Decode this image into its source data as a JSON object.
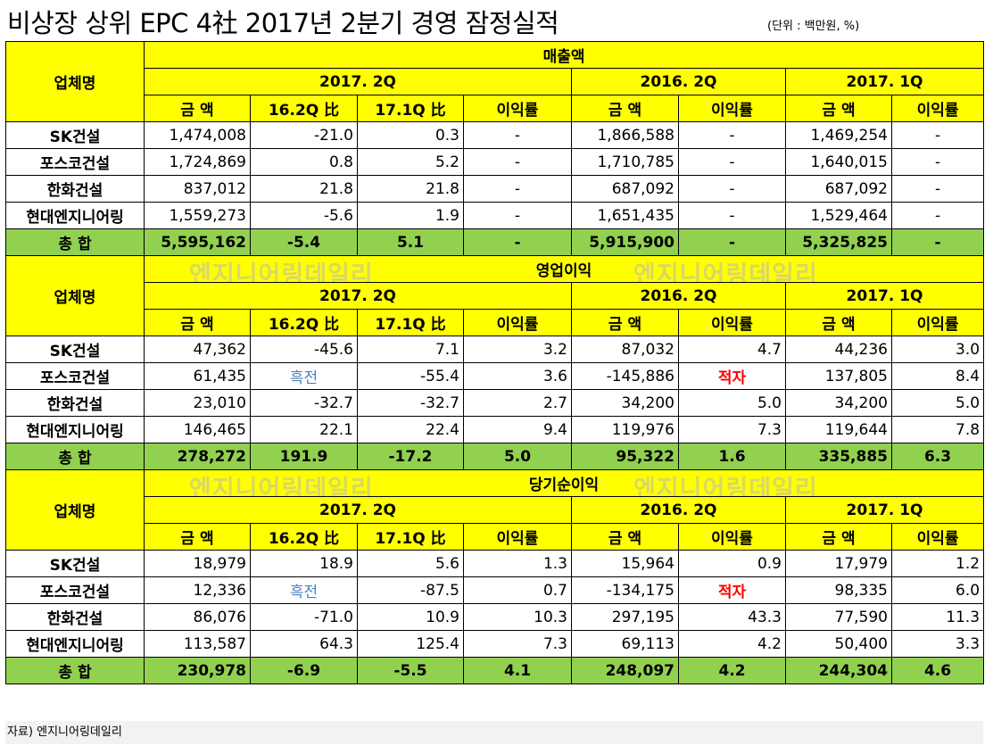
{
  "title": "비상장 상위 EPC 4社 2017년 2분기 경영 잠정실적",
  "unit": "(단위 : 백만원, %)",
  "watermark": "엔지니어링데일리",
  "headers": {
    "company": "업체명",
    "p2017q2": "2017. 2Q",
    "p2016q2": "2016. 2Q",
    "p2017q1": "2017. 1Q",
    "amount": "금  액",
    "vs16q2": "16.2Q 比",
    "vs17q1": "17.1Q 比",
    "margin": "이익률"
  },
  "sections": [
    {
      "name": "매출액",
      "rows": [
        [
          "SK건설",
          "1,474,008",
          "-21.0",
          "0.3",
          "-",
          "1,866,588",
          "-",
          "1,469,254",
          "-"
        ],
        [
          "포스코건설",
          "1,724,869",
          "0.8",
          "5.2",
          "-",
          "1,710,785",
          "-",
          "1,640,015",
          "-"
        ],
        [
          "한화건설",
          "837,012",
          "21.8",
          "21.8",
          "-",
          "687,092",
          "-",
          "687,092",
          "-"
        ],
        [
          "현대엔지니어링",
          "1,559,273",
          "-5.6",
          "1.9",
          "-",
          "1,651,435",
          "-",
          "1,529,464",
          "-"
        ]
      ],
      "total": [
        "총  합",
        "5,595,162",
        "-5.4",
        "5.1",
        "-",
        "5,915,900",
        "-",
        "5,325,825",
        "-"
      ]
    },
    {
      "name": "영업이익",
      "rows": [
        [
          "SK건설",
          "47,362",
          "-45.6",
          "7.1",
          "3.2",
          "87,032",
          "4.7",
          "44,236",
          "3.0"
        ],
        [
          "포스코건설",
          "61,435",
          "흑전",
          "-55.4",
          "3.6",
          "-145,886",
          "적자",
          "137,805",
          "8.4"
        ],
        [
          "한화건설",
          "23,010",
          "-32.7",
          "-32.7",
          "2.7",
          "34,200",
          "5.0",
          "34,200",
          "5.0"
        ],
        [
          "현대엔지니어링",
          "146,465",
          "22.1",
          "22.4",
          "9.4",
          "119,976",
          "7.3",
          "119,644",
          "7.8"
        ]
      ],
      "total": [
        "총  합",
        "278,272",
        "191.9",
        "-17.2",
        "5.0",
        "95,322",
        "1.6",
        "335,885",
        "6.3"
      ]
    },
    {
      "name": "당기순이익",
      "rows": [
        [
          "SK건설",
          "18,979",
          "18.9",
          "5.6",
          "1.3",
          "15,964",
          "0.9",
          "17,979",
          "1.2"
        ],
        [
          "포스코건설",
          "12,336",
          "흑전",
          "-87.5",
          "0.7",
          "-134,175",
          "적자",
          "98,335",
          "6.0"
        ],
        [
          "한화건설",
          "86,076",
          "-71.0",
          "10.9",
          "10.3",
          "297,195",
          "43.3",
          "77,590",
          "11.3"
        ],
        [
          "현대엔지니어링",
          "113,587",
          "64.3",
          "125.4",
          "7.3",
          "69,113",
          "4.2",
          "50,400",
          "3.3"
        ]
      ],
      "total": [
        "총  합",
        "230,978",
        "-6.9",
        "-5.5",
        "4.1",
        "248,097",
        "4.2",
        "244,304",
        "4.6"
      ]
    }
  ],
  "colors": {
    "header": "#ffff00",
    "total": "#92d050",
    "positive_turn": "#4f81bd",
    "deficit": "#ff0000"
  },
  "source": "자료) 엔지니어링데일리"
}
